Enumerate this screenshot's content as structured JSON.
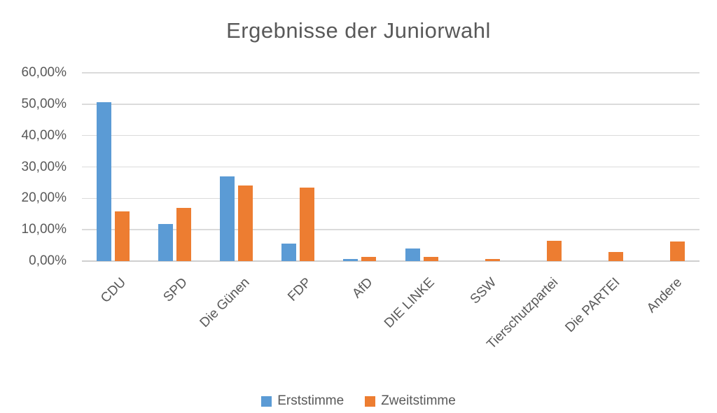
{
  "chart_data": {
    "type": "bar",
    "title": "Ergebnisse der Juniorwahl",
    "categories": [
      "CDU",
      "SPD",
      "Die Günen",
      "FDP",
      "AfD",
      "DIE LINKE",
      "SSW",
      "Tierschutzpartei",
      "Die PARTEI",
      "Andere"
    ],
    "series": [
      {
        "name": "Erststimme",
        "color": "#5B9BD5",
        "values": [
          50.6,
          11.9,
          27.0,
          5.5,
          0.7,
          4.1,
          0,
          0,
          0,
          0
        ]
      },
      {
        "name": "Zweitstimme",
        "color": "#ED7D31",
        "values": [
          15.8,
          16.9,
          24.1,
          23.5,
          1.3,
          1.3,
          0.6,
          6.4,
          2.9,
          6.3
        ]
      }
    ],
    "y_axis": {
      "min": 0,
      "max": 60,
      "step": 10,
      "tick_labels": [
        "0,00%",
        "10,00%",
        "20,00%",
        "30,00%",
        "40,00%",
        "50,00%",
        "60,00%"
      ]
    },
    "x_axis": {
      "label_rotation_deg": -45
    },
    "grid": true,
    "legend_position": "bottom",
    "colors": {
      "gridline": "#DBDBDB",
      "axis_line": "#CFCFCF",
      "text": "#595959",
      "background": "#FFFFFF"
    }
  }
}
